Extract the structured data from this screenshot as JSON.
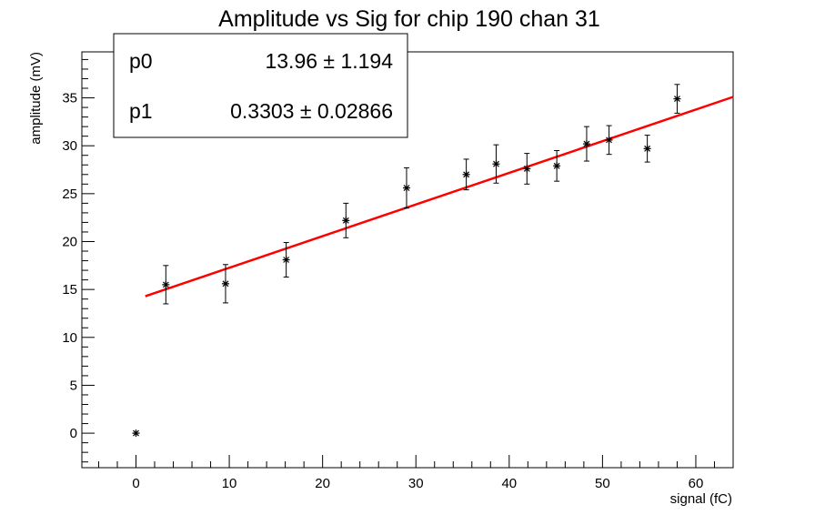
{
  "chart_data": {
    "type": "scatter",
    "title": "Amplitude vs Sig for chip 190 chan 31",
    "xlabel": "signal (fC)",
    "ylabel": "amplitude (mV)",
    "xlim": [
      -5.8,
      64
    ],
    "ylim": [
      -3.6,
      39.8
    ],
    "x_ticks": [
      0,
      10,
      20,
      30,
      40,
      50,
      60
    ],
    "y_ticks": [
      0,
      5,
      10,
      15,
      20,
      25,
      30,
      35
    ],
    "grid": false,
    "points": [
      {
        "x": 0.0,
        "y": 0.0,
        "err": 0.0
      },
      {
        "x": 3.2,
        "y": 15.5,
        "err": 2.0
      },
      {
        "x": 9.6,
        "y": 15.6,
        "err": 2.0
      },
      {
        "x": 16.1,
        "y": 18.1,
        "err": 1.8
      },
      {
        "x": 22.5,
        "y": 22.2,
        "err": 1.8
      },
      {
        "x": 29.0,
        "y": 25.6,
        "err": 2.1
      },
      {
        "x": 35.4,
        "y": 27.0,
        "err": 1.6
      },
      {
        "x": 38.6,
        "y": 28.1,
        "err": 2.0
      },
      {
        "x": 41.9,
        "y": 27.6,
        "err": 1.6
      },
      {
        "x": 45.1,
        "y": 27.9,
        "err": 1.6
      },
      {
        "x": 48.3,
        "y": 30.2,
        "err": 1.8
      },
      {
        "x": 50.7,
        "y": 30.6,
        "err": 1.5
      },
      {
        "x": 54.8,
        "y": 29.7,
        "err": 1.4
      },
      {
        "x": 58.0,
        "y": 34.9,
        "err": 1.5
      }
    ],
    "fit": {
      "p0": 13.96,
      "p1": 0.3303,
      "x_range": [
        1.0,
        64
      ],
      "color": "#ff0000"
    },
    "stats": [
      {
        "name": "p0",
        "value": "13.96",
        "error": "1.194"
      },
      {
        "name": "p1",
        "value": "0.3303",
        "error": "0.02866"
      }
    ],
    "legend_position": "top-left",
    "point_color": "#000000"
  }
}
